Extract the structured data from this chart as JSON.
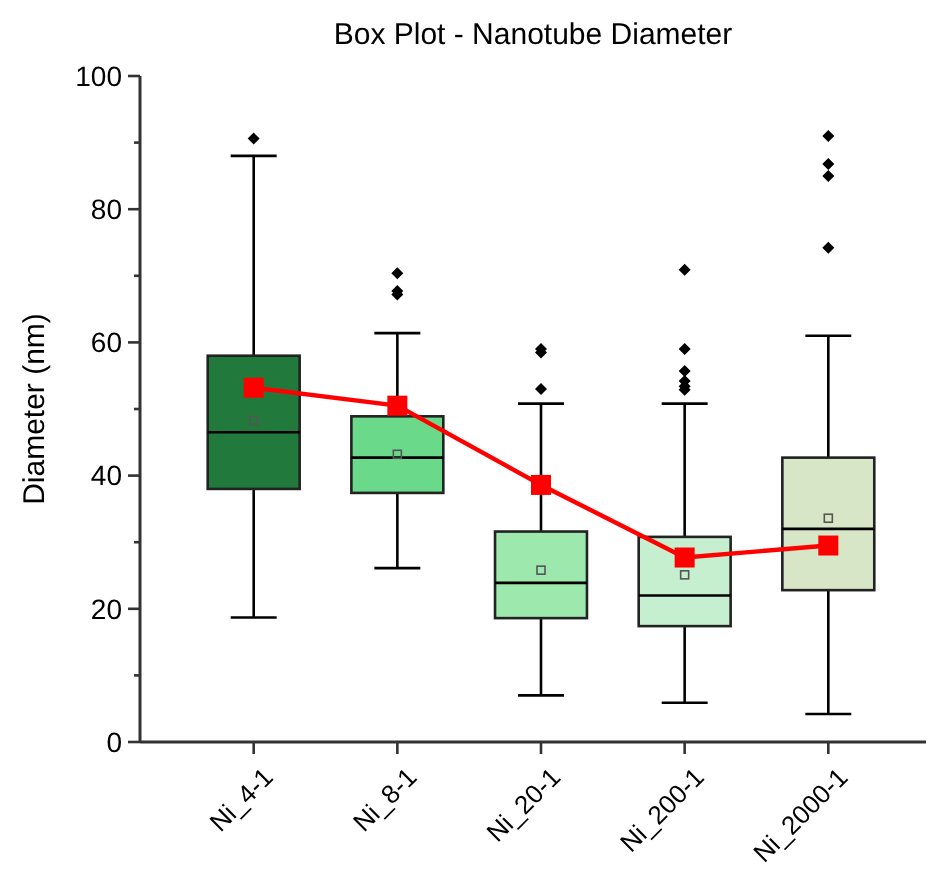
{
  "chart_data": {
    "type": "box",
    "title": "Box Plot - Nanotube Diameter",
    "ylabel": "Diameter (nm)",
    "categories": [
      "Ni_4-1",
      "Ni_8-1",
      "Ni_20-1",
      "Ni_200-1",
      "Ni_2000-1"
    ],
    "ylim": [
      0,
      100
    ],
    "yticks": [
      0,
      {
        "value": 10,
        "label": null
      },
      20,
      {
        "value": 30,
        "label": null
      },
      40,
      {
        "value": 50,
        "label": null
      },
      60,
      {
        "value": 70,
        "label": null
      },
      80,
      {
        "value": 90,
        "label": null
      },
      100
    ],
    "grid": false,
    "series": [
      {
        "colors": [
          "#217a3c",
          "#6bd98a",
          "#9de8ad",
          "#c6efd0",
          "#d7e6c6"
        ],
        "boxes": [
          {
            "low": 18.7,
            "q1": 38.0,
            "median": 46.5,
            "q3": 58.0,
            "high": 88.0,
            "mean": 48.3,
            "outliers": [
              90.6
            ]
          },
          {
            "low": 26.1,
            "q1": 37.4,
            "median": 42.7,
            "q3": 48.9,
            "high": 61.4,
            "mean": 43.2,
            "outliers": [
              70.4,
              67.7,
              67.2
            ]
          },
          {
            "low": 7.0,
            "q1": 18.6,
            "median": 23.9,
            "q3": 31.6,
            "high": 50.8,
            "mean": 25.8,
            "outliers": [
              59.0,
              58.5,
              53.0
            ]
          },
          {
            "low": 5.9,
            "q1": 17.4,
            "median": 22.0,
            "q3": 30.8,
            "high": 50.8,
            "mean": 25.1,
            "outliers": [
              70.9,
              59.0,
              55.7,
              54.2,
              53.4,
              52.9
            ]
          },
          {
            "low": 4.2,
            "q1": 22.8,
            "median": 32.0,
            "q3": 42.7,
            "high": 61.0,
            "mean": 33.6,
            "outliers": [
              91.0,
              86.8,
              85.0,
              74.2
            ]
          }
        ]
      },
      {
        "type": "line",
        "color": "#ff0000",
        "marker": "square",
        "line_style": "solid",
        "x": [
          "Ni_4-1",
          "Ni_8-1",
          "Ni_20-1",
          "Ni_200-1",
          "Ni_2000-1"
        ],
        "values": [
          53.2,
          50.5,
          38.6,
          27.7,
          29.5
        ]
      }
    ]
  }
}
